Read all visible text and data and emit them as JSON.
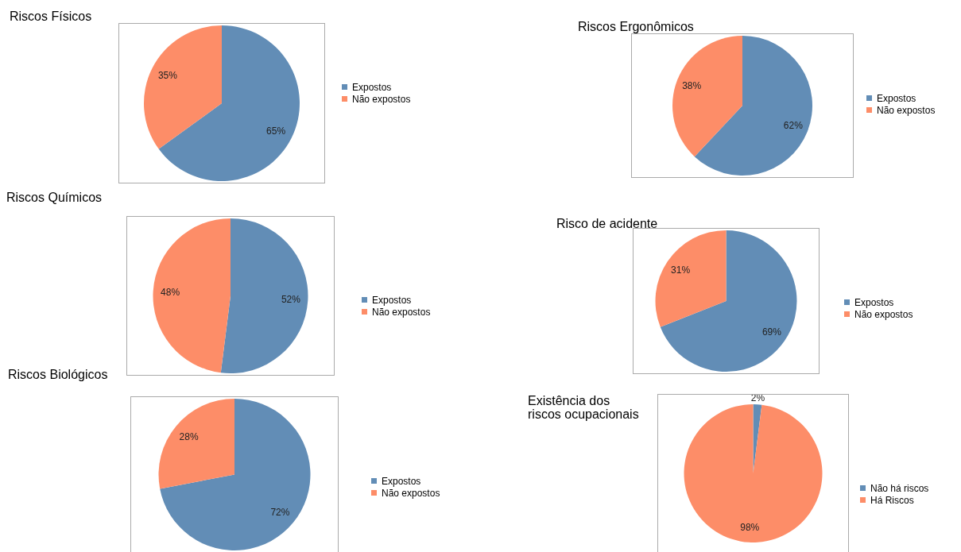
{
  "chart_data": [
    {
      "type": "pie",
      "title": "Riscos Físicos",
      "categories": [
        "Expostos",
        "Não expostos"
      ],
      "values": [
        65,
        35
      ],
      "colors": [
        "#628db6",
        "#fd8d68"
      ],
      "value_labels": [
        "65%",
        "35%"
      ],
      "legend": "right"
    },
    {
      "type": "pie",
      "title": "Riscos Ergonômicos",
      "categories": [
        "Expostos",
        "Não expostos"
      ],
      "values": [
        62,
        38
      ],
      "colors": [
        "#628db6",
        "#fd8d68"
      ],
      "value_labels": [
        "62%",
        "38%"
      ],
      "legend": "right"
    },
    {
      "type": "pie",
      "title": "Riscos Químicos",
      "categories": [
        "Expostos",
        "Não expostos"
      ],
      "values": [
        52,
        48
      ],
      "colors": [
        "#628db6",
        "#fd8d68"
      ],
      "value_labels": [
        "52%",
        "48%"
      ],
      "legend": "right"
    },
    {
      "type": "pie",
      "title": "Risco de acidente",
      "categories": [
        "Expostos",
        "Não expostos"
      ],
      "values": [
        69,
        31
      ],
      "colors": [
        "#628db6",
        "#fd8d68"
      ],
      "value_labels": [
        "69%",
        "31%"
      ],
      "legend": "right"
    },
    {
      "type": "pie",
      "title": "Riscos Biológicos",
      "categories": [
        "Expostos",
        "Não expostos"
      ],
      "values": [
        72,
        28
      ],
      "colors": [
        "#628db6",
        "#fd8d68"
      ],
      "value_labels": [
        "72%",
        "28%"
      ],
      "legend": "right"
    },
    {
      "type": "pie",
      "title": "Existência dos\nriscos ocupacionais",
      "categories": [
        "Não há riscos",
        "Há Riscos"
      ],
      "values": [
        2,
        98
      ],
      "colors": [
        "#628db6",
        "#fd8d68"
      ],
      "value_labels": [
        "2%",
        "98%"
      ],
      "legend": "right"
    }
  ]
}
